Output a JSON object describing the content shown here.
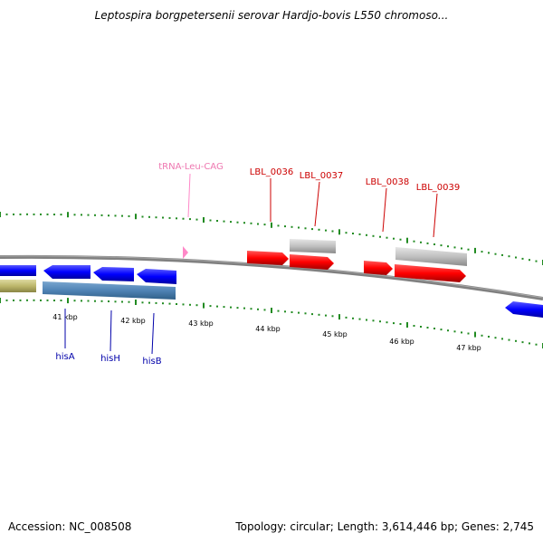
{
  "title": "Leptospira borgpetersenii serovar Hardjo-bovis L550 chromoso...",
  "footer": {
    "accession": "Accession: NC_008508",
    "summary": "Topology: circular; Length: 3,614,446 bp; Genes: 2,745"
  },
  "colors": {
    "backbone": "#808080",
    "ticks": "#228b22",
    "gene_forward": "#ff0000",
    "gene_reverse": "#0000ff",
    "pseudo_gene": "#c0c0c0",
    "trna": "#ff88c8",
    "label_forward": "#cc0000",
    "label_reverse": "#0000aa",
    "label_trna": "#ee77b0"
  },
  "scale_labels": [
    "41 kbp",
    "42 kbp",
    "43 kbp",
    "44 kbp",
    "45 kbp",
    "46 kbp",
    "47 kbp"
  ],
  "gene_labels": {
    "trna": "tRNA-Leu-CAG",
    "lbl36": "LBL_0036",
    "lbl37": "LBL_0037",
    "lbl38": "LBL_0038",
    "lbl39": "LBL_0039",
    "hisA": "hisA",
    "hisH": "hisH",
    "hisB": "hisB"
  }
}
